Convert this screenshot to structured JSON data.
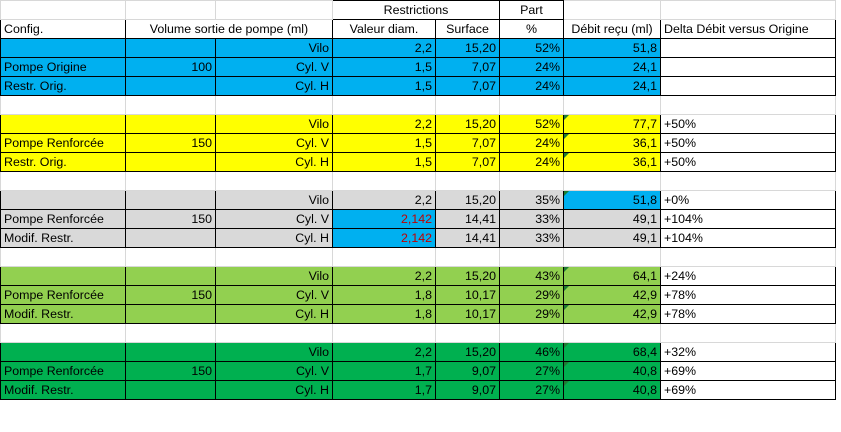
{
  "header": {
    "restrictions": "Restrictions",
    "part": "Part",
    "config": "Config.",
    "volume": "Volume sortie de pompe (ml)",
    "diam": "Valeur diam.",
    "surface": "Surface",
    "pct": "%",
    "debit": "Débit reçu (ml)",
    "delta": "Delta Débit versus Origine"
  },
  "colors": {
    "blue": "#00b0f0",
    "yellow": "#ffff00",
    "gray": "#d9d9d9",
    "light_green": "#92d050",
    "dark_green": "#00b050",
    "red_text": "#c00000"
  },
  "groups": [
    {
      "rows": [
        {
          "config": "",
          "volume": "",
          "name": "Vilo",
          "diam": "2,2",
          "surface": "15,20",
          "part": "52%",
          "debit": "51,8",
          "delta": ""
        },
        {
          "config": "Pompe Origine",
          "volume": "100",
          "name": "Cyl. V",
          "diam": "1,5",
          "surface": "7,07",
          "part": "24%",
          "debit": "24,1",
          "delta": ""
        },
        {
          "config": "Restr. Orig.",
          "volume": "",
          "name": "Cyl. H",
          "diam": "1,5",
          "surface": "7,07",
          "part": "24%",
          "debit": "24,1",
          "delta": ""
        }
      ]
    },
    {
      "rows": [
        {
          "config": "",
          "volume": "",
          "name": "Vilo",
          "diam": "2,2",
          "surface": "15,20",
          "part": "52%",
          "debit": "77,7",
          "delta": "+50%"
        },
        {
          "config": "Pompe Renforcée",
          "volume": "150",
          "name": "Cyl. V",
          "diam": "1,5",
          "surface": "7,07",
          "part": "24%",
          "debit": "36,1",
          "delta": "+50%"
        },
        {
          "config": "Restr. Orig.",
          "volume": "",
          "name": "Cyl. H",
          "diam": "1,5",
          "surface": "7,07",
          "part": "24%",
          "debit": "36,1",
          "delta": "+50%"
        }
      ]
    },
    {
      "rows": [
        {
          "config": "",
          "volume": "",
          "name": "Vilo",
          "diam": "2,2",
          "surface": "15,20",
          "part": "35%",
          "debit": "51,8",
          "delta": "+0%"
        },
        {
          "config": "Pompe Renforcée",
          "volume": "150",
          "name": "Cyl. V",
          "diam": "2,142",
          "surface": "14,41",
          "part": "33%",
          "debit": "49,1",
          "delta": "+104%"
        },
        {
          "config": "Modif. Restr.",
          "volume": "",
          "name": "Cyl. H",
          "diam": "2,142",
          "surface": "14,41",
          "part": "33%",
          "debit": "49,1",
          "delta": "+104%"
        }
      ]
    },
    {
      "rows": [
        {
          "config": "",
          "volume": "",
          "name": "Vilo",
          "diam": "2,2",
          "surface": "15,20",
          "part": "43%",
          "debit": "64,1",
          "delta": "+24%"
        },
        {
          "config": "Pompe Renforcée",
          "volume": "150",
          "name": "Cyl. V",
          "diam": "1,8",
          "surface": "10,17",
          "part": "29%",
          "debit": "42,9",
          "delta": "+78%"
        },
        {
          "config": "Modif. Restr.",
          "volume": "",
          "name": "Cyl. H",
          "diam": "1,8",
          "surface": "10,17",
          "part": "29%",
          "debit": "42,9",
          "delta": "+78%"
        }
      ]
    },
    {
      "rows": [
        {
          "config": "",
          "volume": "",
          "name": "Vilo",
          "diam": "2,2",
          "surface": "15,20",
          "part": "46%",
          "debit": "68,4",
          "delta": "+32%"
        },
        {
          "config": "Pompe Renforcée",
          "volume": "150",
          "name": "Cyl. V",
          "diam": "1,7",
          "surface": "9,07",
          "part": "27%",
          "debit": "40,8",
          "delta": "+69%"
        },
        {
          "config": "Modif. Restr.",
          "volume": "",
          "name": "Cyl. H",
          "diam": "1,7",
          "surface": "9,07",
          "part": "27%",
          "debit": "40,8",
          "delta": "+69%"
        }
      ]
    }
  ]
}
